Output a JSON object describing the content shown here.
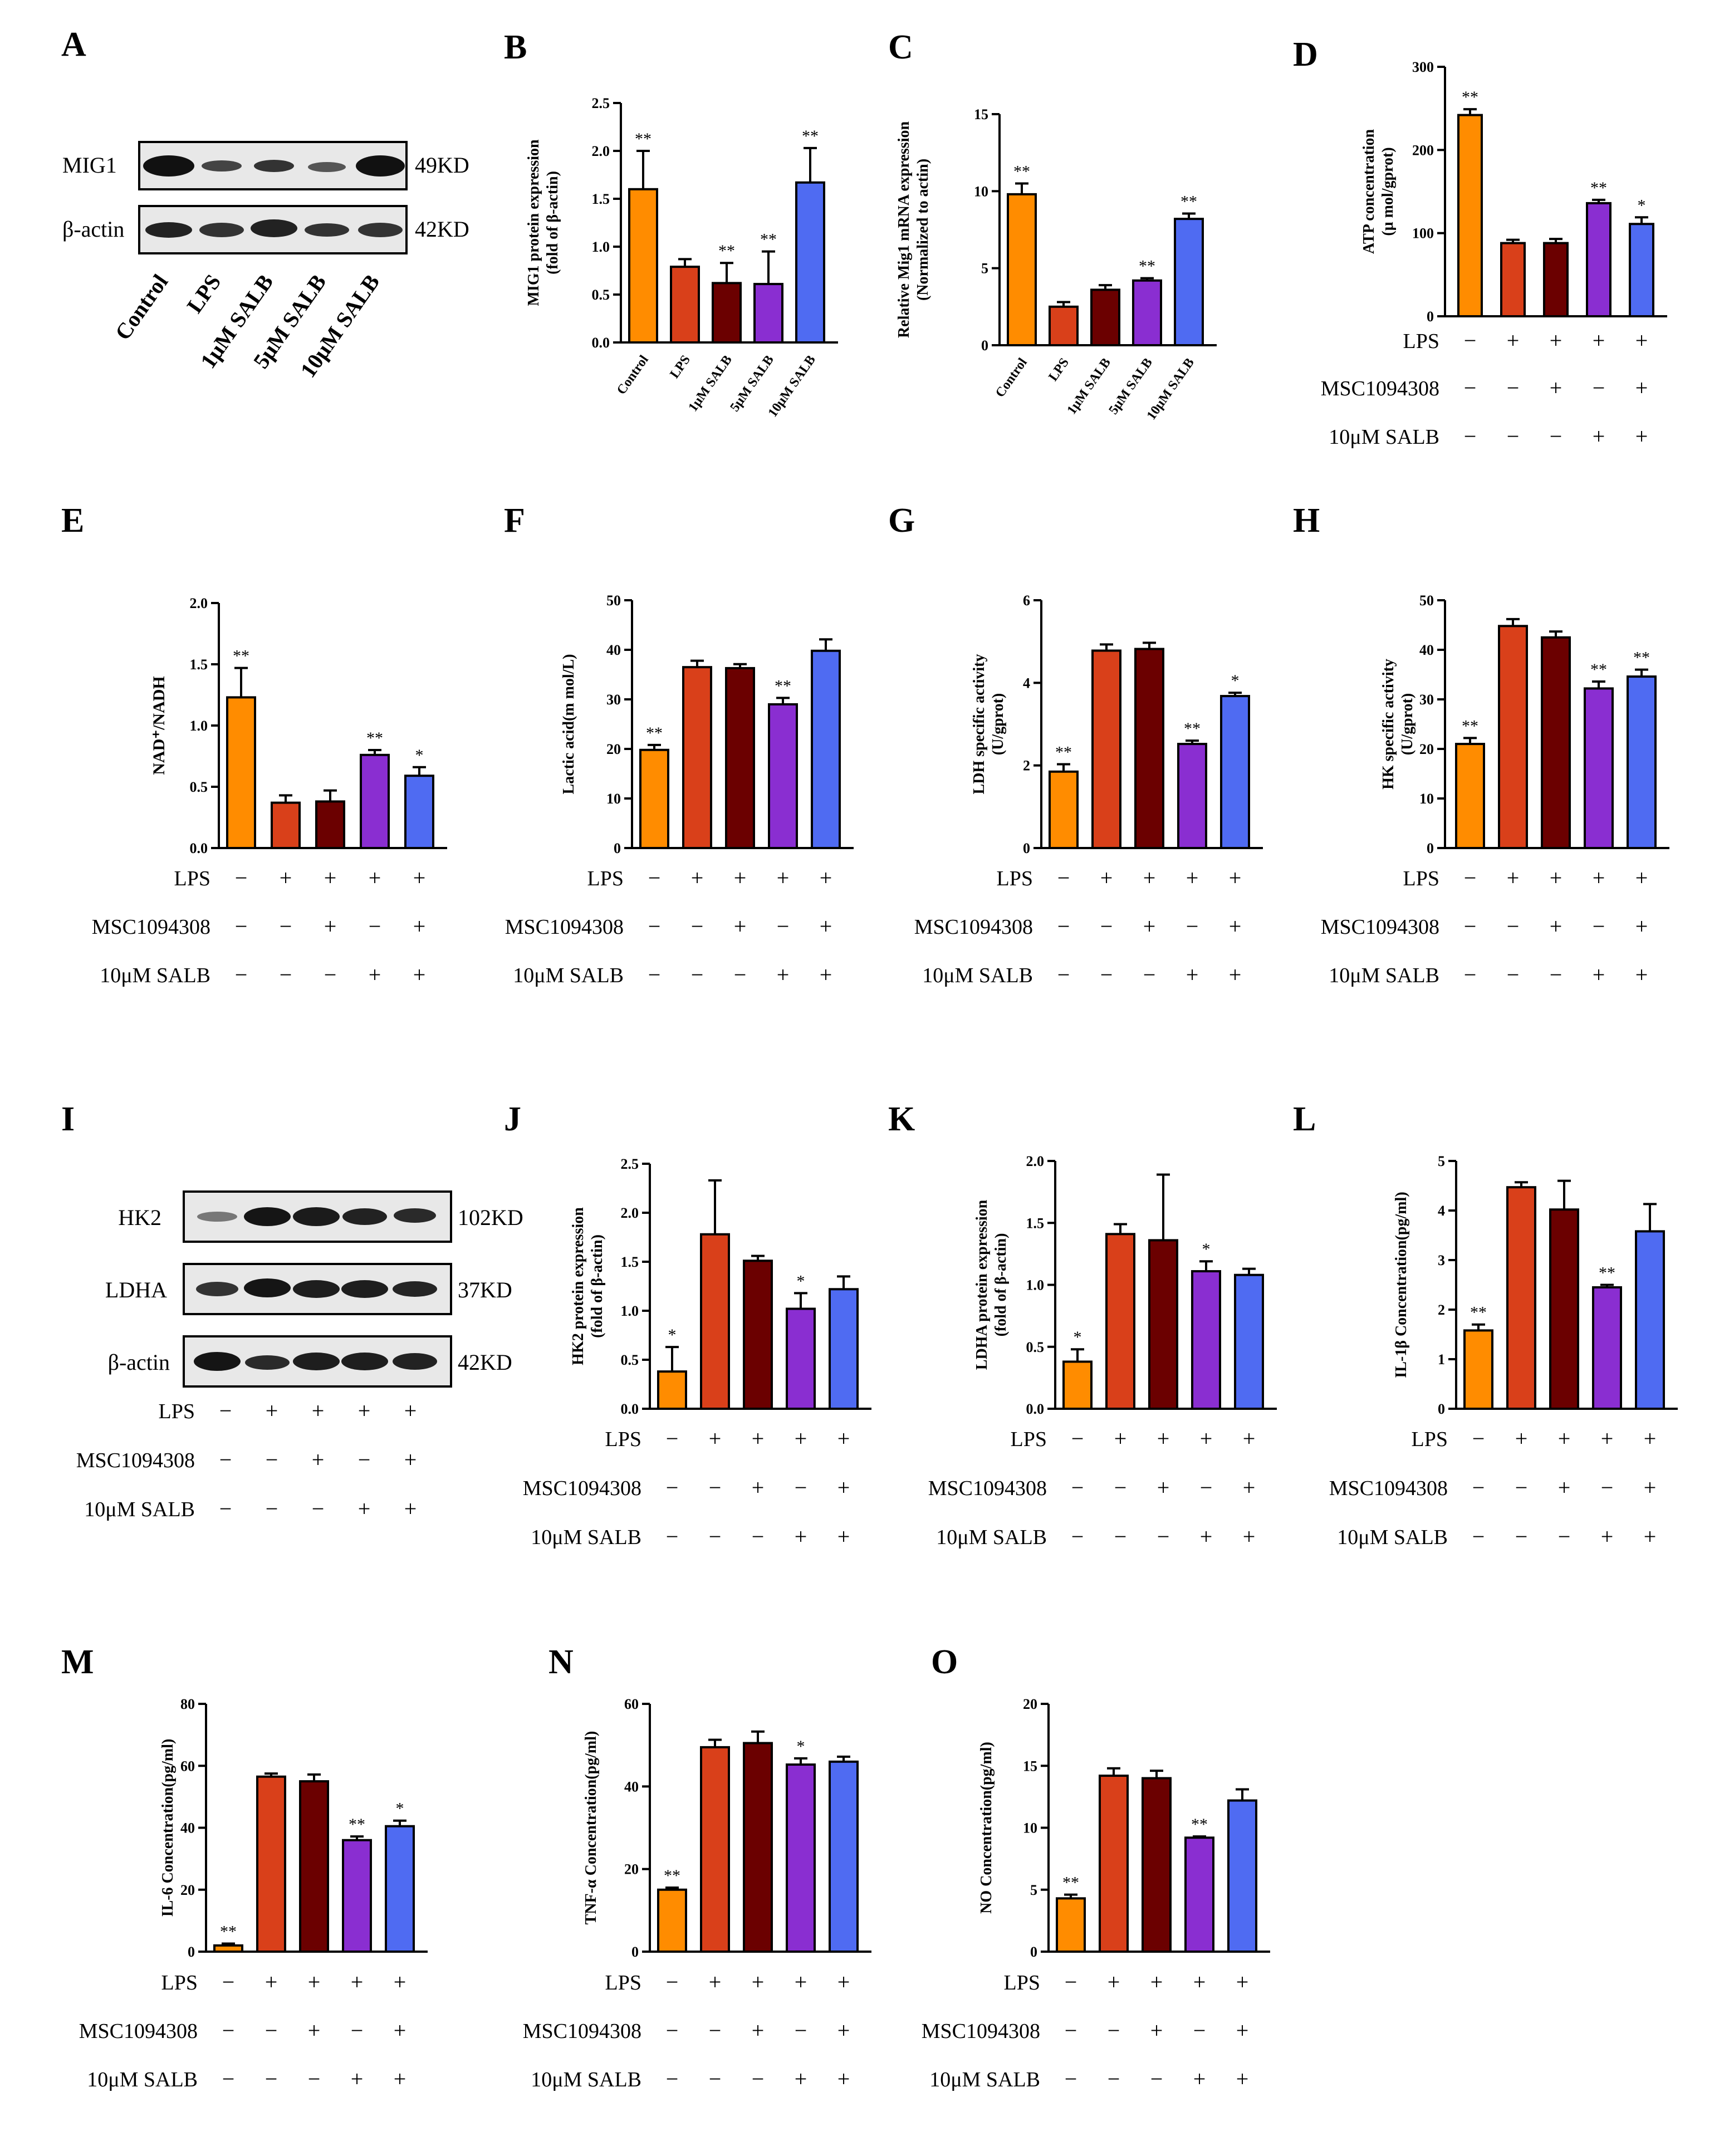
{
  "colors": [
    "#ff8c00",
    "#d9401a",
    "#6b0000",
    "#8a2ed1",
    "#4f6bf2"
  ],
  "cond_labels": [
    "LPS",
    "MSC1094308",
    "10μM SALB"
  ],
  "cond_signs": [
    [
      "−",
      "+",
      "+",
      "+",
      "+"
    ],
    [
      "−",
      "−",
      "+",
      "−",
      "+"
    ],
    [
      "−",
      "−",
      "−",
      "+",
      "+"
    ]
  ],
  "chart_data": [
    {
      "id": "B",
      "type": "bar",
      "title": "B",
      "ylabel": "MIG1 protein expression|(fold of β-actin)",
      "ylim": [
        0,
        2.5
      ],
      "ticks": [
        "0.0",
        "0.5",
        "1.0",
        "1.5",
        "2.0",
        "2.5"
      ],
      "categories": [
        "Control",
        "LPS",
        "1μM SALB",
        "5μM SALB",
        "10μM SALB"
      ],
      "values": [
        1.6,
        0.79,
        0.62,
        0.61,
        1.67
      ],
      "errors": [
        0.4,
        0.08,
        0.21,
        0.34,
        0.36
      ],
      "sig": [
        "**",
        "",
        "**",
        "**",
        "**"
      ]
    },
    {
      "id": "C",
      "type": "bar",
      "title": "C",
      "ylabel": "Relative Mig1 mRNA expression|(Normalized to actin)",
      "ylim": [
        0,
        15
      ],
      "ticks": [
        "0",
        "5",
        "10",
        "15"
      ],
      "categories": [
        "Control",
        "LPS",
        "1μM SALB",
        "5μM SALB",
        "10μM SALB"
      ],
      "values": [
        9.8,
        2.5,
        3.6,
        4.2,
        8.2
      ],
      "errors": [
        0.7,
        0.3,
        0.3,
        0.15,
        0.35
      ],
      "sig": [
        "**",
        "",
        "",
        "**",
        "**"
      ]
    },
    {
      "id": "D",
      "type": "bar",
      "title": "D",
      "ylabel": "ATP concentration|(μ mol/gprot)",
      "ylim": [
        0,
        300
      ],
      "ticks": [
        "0",
        "100",
        "200",
        "300"
      ],
      "values": [
        242,
        88,
        88,
        136,
        111
      ],
      "errors": [
        7,
        4,
        5,
        4,
        8
      ],
      "sig": [
        "**",
        "",
        "",
        "**",
        "*"
      ]
    },
    {
      "id": "E",
      "type": "bar",
      "title": "E",
      "ylabel": "NAD⁺/NADH",
      "ylim": [
        0,
        2.0
      ],
      "ticks": [
        "0.0",
        "0.5",
        "1.0",
        "1.5",
        "2.0"
      ],
      "values": [
        1.23,
        0.37,
        0.38,
        0.76,
        0.59
      ],
      "errors": [
        0.24,
        0.06,
        0.09,
        0.04,
        0.07
      ],
      "sig": [
        "**",
        "",
        "",
        "**",
        "*"
      ]
    },
    {
      "id": "F",
      "type": "bar",
      "title": "F",
      "ylabel": "Lactic acid(m mol/L)",
      "ylim": [
        0,
        50
      ],
      "ticks": [
        "0",
        "10",
        "20",
        "30",
        "40",
        "50"
      ],
      "values": [
        19.8,
        36.5,
        36.3,
        29.0,
        39.8
      ],
      "errors": [
        1.0,
        1.3,
        0.8,
        1.3,
        2.3
      ],
      "sig": [
        "**",
        "",
        "",
        "**",
        ""
      ]
    },
    {
      "id": "G",
      "type": "bar",
      "title": "G",
      "ylabel": "LDH specific activity|(U/gprot)",
      "ylim": [
        0,
        6
      ],
      "ticks": [
        "0",
        "2",
        "4",
        "6"
      ],
      "values": [
        1.85,
        4.78,
        4.82,
        2.52,
        3.68
      ],
      "errors": [
        0.18,
        0.15,
        0.15,
        0.08,
        0.08
      ],
      "sig": [
        "**",
        "",
        "",
        "**",
        "*"
      ]
    },
    {
      "id": "H",
      "type": "bar",
      "title": "H",
      "ylabel": "HK specific activity|(U/gprot)",
      "ylim": [
        0,
        50
      ],
      "ticks": [
        "0",
        "10",
        "20",
        "30",
        "40",
        "50"
      ],
      "values": [
        21.0,
        44.8,
        42.5,
        32.2,
        34.6
      ],
      "errors": [
        1.2,
        1.4,
        1.2,
        1.4,
        1.4
      ],
      "sig": [
        "**",
        "",
        "",
        "**",
        "**"
      ]
    },
    {
      "id": "J",
      "type": "bar",
      "title": "J",
      "ylabel": "HK2 protein expression|(fold of β-actin)",
      "ylim": [
        0,
        2.5
      ],
      "ticks": [
        "0.0",
        "0.5",
        "1.0",
        "1.5",
        "2.0",
        "2.5"
      ],
      "values": [
        0.38,
        1.78,
        1.51,
        1.02,
        1.22
      ],
      "errors": [
        0.25,
        0.55,
        0.05,
        0.16,
        0.13
      ],
      "sig": [
        "*",
        "",
        "",
        "*",
        ""
      ]
    },
    {
      "id": "K",
      "type": "bar",
      "title": "K",
      "ylabel": "LDHA protein expression|(fold of β-actin)",
      "ylim": [
        0,
        2.0
      ],
      "ticks": [
        "0.0",
        "0.5",
        "1.0",
        "1.5",
        "2.0"
      ],
      "values": [
        0.38,
        1.41,
        1.36,
        1.11,
        1.08
      ],
      "errors": [
        0.1,
        0.08,
        0.53,
        0.08,
        0.05
      ],
      "sig": [
        "*",
        "",
        "",
        "*",
        ""
      ]
    },
    {
      "id": "L",
      "type": "bar",
      "title": "L",
      "ylabel": "IL-1β Concentration(pg/ml)",
      "ylim": [
        0,
        5
      ],
      "ticks": [
        "0",
        "1",
        "2",
        "3",
        "4",
        "5"
      ],
      "values": [
        1.58,
        4.47,
        4.02,
        2.45,
        3.58
      ],
      "errors": [
        0.12,
        0.1,
        0.58,
        0.05,
        0.55
      ],
      "sig": [
        "**",
        "",
        "",
        "**",
        ""
      ]
    },
    {
      "id": "M",
      "type": "bar",
      "title": "M",
      "ylabel": "IL-6 Concentration(pg/ml)",
      "ylim": [
        0,
        80
      ],
      "ticks": [
        "0",
        "20",
        "40",
        "60",
        "80"
      ],
      "values": [
        2,
        56.5,
        55,
        36,
        40.5
      ],
      "errors": [
        0.6,
        1.0,
        2.2,
        1.2,
        1.8
      ],
      "sig": [
        "**",
        "",
        "",
        "**",
        "*"
      ]
    },
    {
      "id": "N",
      "type": "bar",
      "title": "N",
      "ylabel": "TNF-α Concentration(pg/ml)",
      "ylim": [
        0,
        60
      ],
      "ticks": [
        "0",
        "20",
        "40",
        "60"
      ],
      "values": [
        15,
        49.5,
        50.5,
        45.3,
        46
      ],
      "errors": [
        0.5,
        1.8,
        2.8,
        1.5,
        1.2
      ],
      "sig": [
        "**",
        "",
        "",
        "*",
        ""
      ]
    },
    {
      "id": "O",
      "type": "bar",
      "title": "O",
      "ylabel": "NO Concentration(pg/ml)",
      "ylim": [
        0,
        20
      ],
      "ticks": [
        "0",
        "5",
        "10",
        "15",
        "20"
      ],
      "values": [
        4.3,
        14.2,
        14.0,
        9.2,
        12.2
      ],
      "errors": [
        0.3,
        0.6,
        0.6,
        0.1,
        0.9
      ],
      "sig": [
        "**",
        "",
        "",
        "**",
        ""
      ]
    }
  ],
  "blot_A": {
    "label": "A",
    "rows": [
      {
        "name": "MIG1",
        "kd": "49KD"
      },
      {
        "name": "β-actin",
        "kd": "42KD"
      }
    ],
    "categories": [
      "Control",
      "LPS",
      "1μM SALB",
      "5μM SALB",
      "10μM SALB"
    ]
  },
  "blot_I": {
    "label": "I",
    "rows": [
      {
        "name": "HK2",
        "kd": "102KD"
      },
      {
        "name": "LDHA",
        "kd": "37KD"
      },
      {
        "name": "β-actin",
        "kd": "42KD"
      }
    ]
  }
}
